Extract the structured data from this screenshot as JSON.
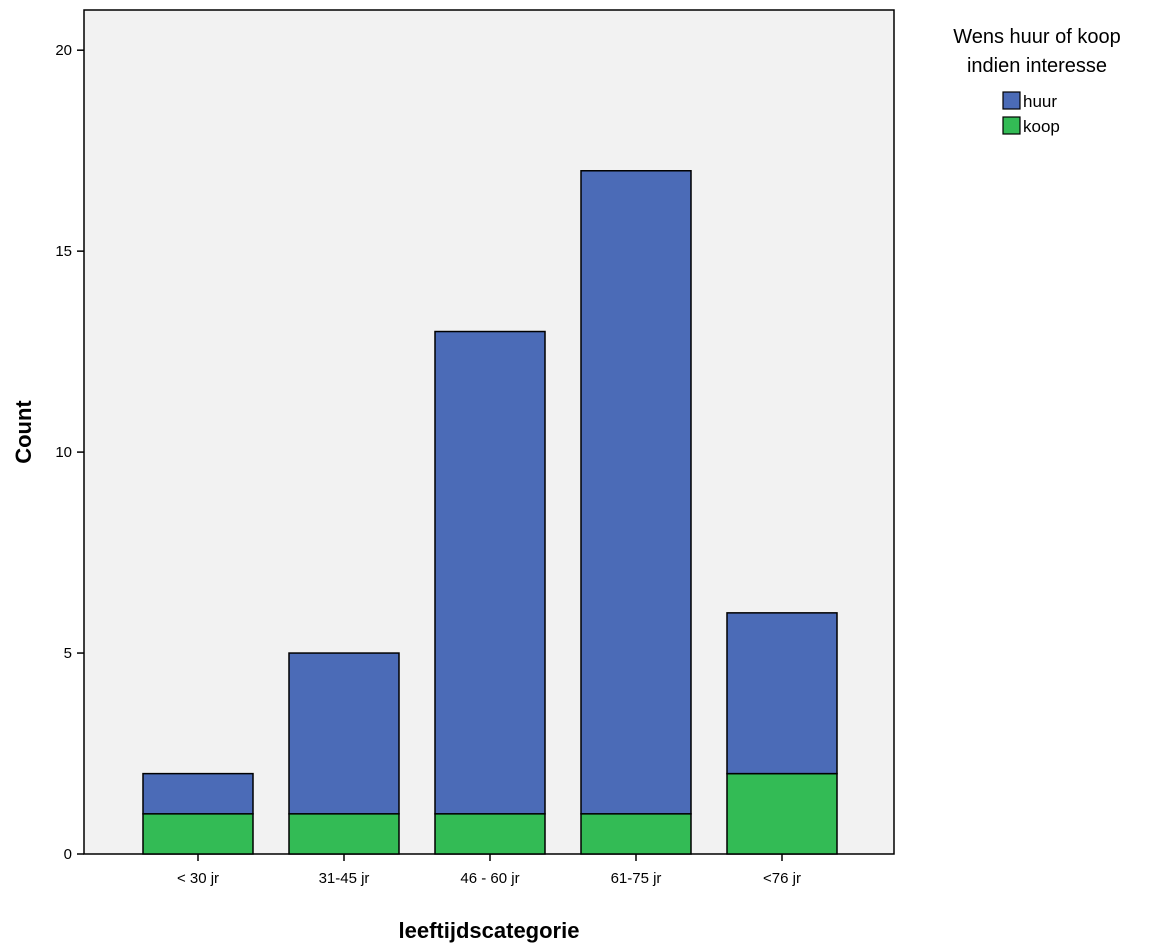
{
  "chart_data": {
    "type": "bar",
    "stacked": true,
    "categories": [
      "< 30 jr",
      "31-45 jr",
      "46 - 60 jr",
      "61-75 jr",
      "<76 jr"
    ],
    "series": [
      {
        "name": "koop",
        "color": "#33bb55",
        "values": [
          1,
          1,
          1,
          1,
          2
        ]
      },
      {
        "name": "huur",
        "color": "#4b6bb7",
        "values": [
          1,
          4,
          12,
          16,
          4
        ]
      }
    ],
    "xlabel": "leeftijdscategorie",
    "ylabel": "Count",
    "ylim": [
      0,
      21
    ],
    "yticks": [
      0,
      5,
      10,
      15,
      20
    ],
    "grid": false,
    "plot_background": "#f2f2f2",
    "legend": {
      "title_lines": [
        "Wens huur of koop",
        "indien interesse"
      ],
      "placement": "top-right, outside plot",
      "entries": [
        {
          "label": "huur",
          "color": "#4b6bb7"
        },
        {
          "label": "koop",
          "color": "#33bb55"
        }
      ]
    }
  }
}
